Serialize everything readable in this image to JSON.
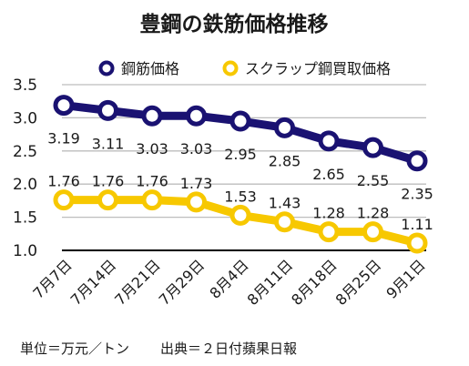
{
  "chart_data": {
    "type": "line",
    "title": "豊鋼の鉄筋価格推移",
    "categories": [
      "7月7日",
      "7月14日",
      "7月21日",
      "7月29日",
      "8月4日",
      "8月11日",
      "8月18日",
      "8月25日",
      "9月1日"
    ],
    "series": [
      {
        "name": "鋼筋価格",
        "color": "#1a1272",
        "values": [
          3.19,
          3.11,
          3.03,
          3.03,
          2.95,
          2.85,
          2.65,
          2.55,
          2.35
        ],
        "labels": [
          "3.19",
          "3.11",
          "3.03",
          "3.03",
          "2.95",
          "2.85",
          "2.65",
          "2.55",
          "2.35"
        ]
      },
      {
        "name": "スクラップ鋼買取価格",
        "color": "#f7c800",
        "values": [
          1.76,
          1.76,
          1.76,
          1.73,
          1.53,
          1.43,
          1.28,
          1.28,
          1.11
        ],
        "labels": [
          "1.76",
          "1.76",
          "1.76",
          "1.73",
          "1.53",
          "1.43",
          "1.28",
          "1.28",
          "1.11"
        ]
      }
    ],
    "yticks": [
      "1.0",
      "1.5",
      "2.0",
      "2.5",
      "3.0",
      "3.5"
    ],
    "ylim": [
      1.0,
      3.5
    ],
    "grid": true,
    "legend": "top"
  },
  "footer": {
    "unit": "単位＝万元／トン",
    "source": "出典＝２日付蘋果日報"
  }
}
